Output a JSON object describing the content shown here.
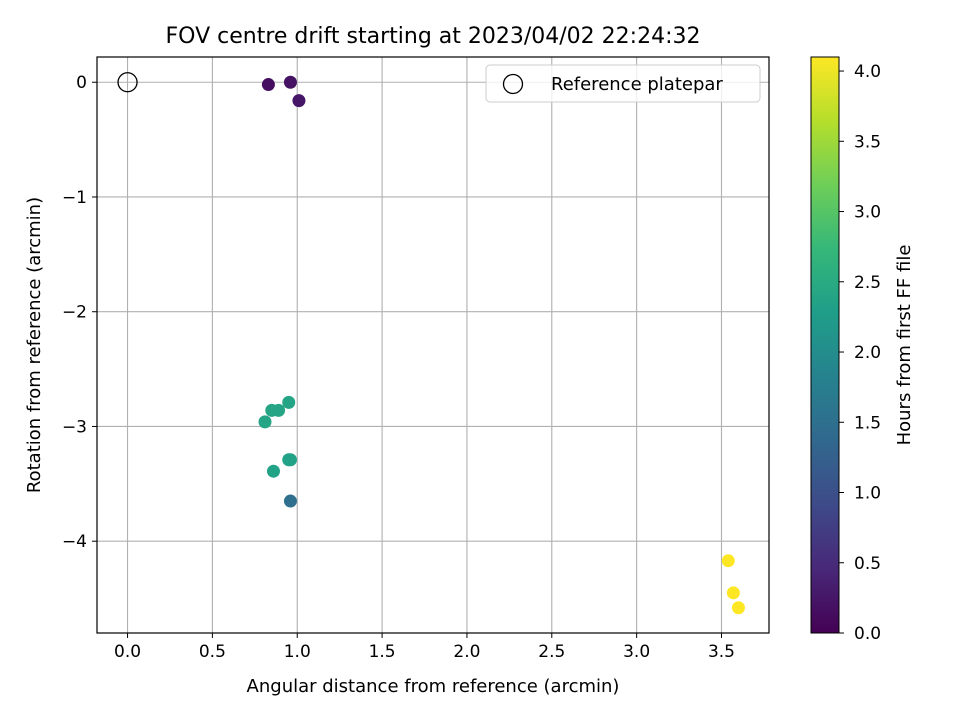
{
  "chart_data": {
    "type": "scatter",
    "title": "FOV centre drift starting at 2023/04/02 22:24:32",
    "xlabel": "Angular distance from reference (arcmin)",
    "ylabel": "Rotation from reference (arcmin)",
    "xlim": [
      -0.18,
      3.78
    ],
    "ylim": [
      -4.8,
      0.22
    ],
    "xticks": [
      0.0,
      0.5,
      1.0,
      1.5,
      2.0,
      2.5,
      3.0,
      3.5
    ],
    "xtick_labels": [
      "0.0",
      "0.5",
      "1.0",
      "1.5",
      "2.0",
      "2.5",
      "3.0",
      "3.5"
    ],
    "yticks": [
      0,
      -1,
      -2,
      -3,
      -4
    ],
    "ytick_labels": [
      "0",
      "−1",
      "−2",
      "−3",
      "−4"
    ],
    "grid": true,
    "legend": {
      "placement": "top-right",
      "entries": [
        "Reference platepar"
      ]
    },
    "reference_point": {
      "x": 0.0,
      "y": 0.0
    },
    "points": [
      {
        "x": 0.83,
        "y": -0.02,
        "hours": 0.15
      },
      {
        "x": 0.96,
        "y": 0.0,
        "hours": 0.2
      },
      {
        "x": 1.01,
        "y": -0.16,
        "hours": 0.25
      },
      {
        "x": 0.95,
        "y": -2.79,
        "hours": 2.4
      },
      {
        "x": 0.85,
        "y": -2.86,
        "hours": 2.4
      },
      {
        "x": 0.89,
        "y": -2.86,
        "hours": 2.4
      },
      {
        "x": 0.81,
        "y": -2.96,
        "hours": 2.4
      },
      {
        "x": 0.95,
        "y": -3.29,
        "hours": 2.35
      },
      {
        "x": 0.96,
        "y": -3.29,
        "hours": 2.35
      },
      {
        "x": 0.86,
        "y": -3.39,
        "hours": 2.35
      },
      {
        "x": 0.96,
        "y": -3.65,
        "hours": 1.5
      },
      {
        "x": 3.54,
        "y": -4.17,
        "hours": 4.1
      },
      {
        "x": 3.57,
        "y": -4.45,
        "hours": 4.1
      },
      {
        "x": 3.6,
        "y": -4.58,
        "hours": 4.1
      }
    ],
    "colorbar": {
      "label": "Hours from first FF file",
      "range": [
        0.0,
        4.1
      ],
      "ticks": [
        0.0,
        0.5,
        1.0,
        1.5,
        2.0,
        2.5,
        3.0,
        3.5,
        4.0
      ],
      "tick_labels": [
        "0.0",
        "0.5",
        "1.0",
        "1.5",
        "2.0",
        "2.5",
        "3.0",
        "3.5",
        "4.0"
      ],
      "colormap": "viridis"
    }
  }
}
